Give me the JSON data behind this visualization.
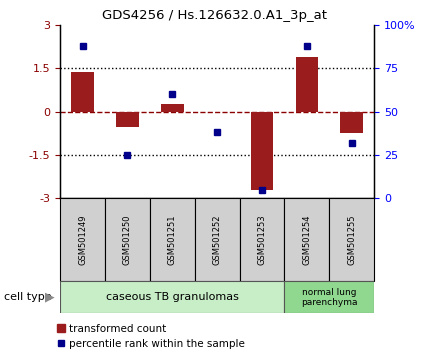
{
  "title": "GDS4256 / Hs.126632.0.A1_3p_at",
  "samples": [
    "GSM501249",
    "GSM501250",
    "GSM501251",
    "GSM501252",
    "GSM501253",
    "GSM501254",
    "GSM501255"
  ],
  "transformed_count": [
    1.35,
    -0.55,
    0.25,
    -0.03,
    -2.7,
    1.9,
    -0.75
  ],
  "percentile_rank": [
    88,
    25,
    60,
    38,
    5,
    88,
    32
  ],
  "ylim_left": [
    -3,
    3
  ],
  "ylim_right": [
    0,
    100
  ],
  "yticks_left": [
    -3,
    -1.5,
    0,
    1.5,
    3
  ],
  "yticks_right": [
    0,
    25,
    50,
    75,
    100
  ],
  "yticklabels_left": [
    "-3",
    "-1.5",
    "0",
    "1.5",
    "3"
  ],
  "yticklabels_right": [
    "0",
    "25",
    "50",
    "75",
    "100%"
  ],
  "hline_dotted": [
    1.5,
    -1.5
  ],
  "hline_dashed_red": 0,
  "bar_color": "#9B1C1C",
  "dot_color": "#00008B",
  "group1_label": "caseous TB granulomas",
  "group1_count": 5,
  "group2_label": "normal lung\nparenchyma",
  "group2_count": 2,
  "group_bg1": "#c8eec8",
  "group_bg2": "#90d890",
  "sample_box_bg": "#d0d0d0",
  "legend_red_label": "transformed count",
  "legend_blue_label": "percentile rank within the sample",
  "cell_type_label": "cell type"
}
